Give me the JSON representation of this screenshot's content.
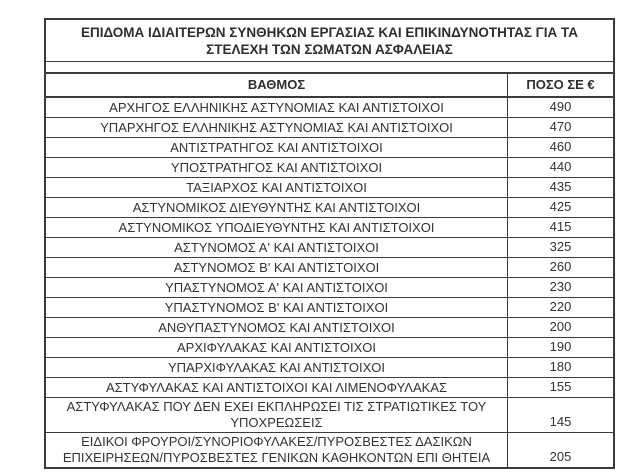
{
  "document": {
    "title_lines": [
      "ΕΠΙΔΟΜΑ ΙΔΙΑΙΤΕΡΩΝ ΣΥΝΘΗΚΩΝ ΕΡΓΑΣΙΑΣ ΚΑΙ ΕΠΙΚΙΝΔΥΝΟΤΗΤΑΣ ΓΙΑ ΤΑ",
      "ΣΤΕΛΕΧΗ ΤΩΝ ΣΩΜΑΤΩΝ ΑΣΦΑΛΕΙΑΣ"
    ],
    "columns": {
      "grade": "ΒΑΘΜΟΣ",
      "amount": "ΠΟΣΟ ΣΕ €"
    },
    "rows": [
      {
        "grade": "ΑΡΧΗΓΟΣ ΕΛΛΗΝΙΚΗΣ ΑΣΤΥΝΟΜΙΑΣ ΚΑΙ ΑΝΤΙΣΤΟΙΧΟΙ",
        "amount": "490"
      },
      {
        "grade": "ΥΠΑΡΧΗΓΟΣ ΕΛΛΗΝΙΚΗΣ ΑΣΤΥΝΟΜΙΑΣ ΚΑΙ ΑΝΤΙΣΤΟΙΧΟΙ",
        "amount": "470"
      },
      {
        "grade": "ΑΝΤΙΣΤΡΑΤΗΓΟΣ ΚΑΙ ΑΝΤΙΣΤΟΙΧΟΙ",
        "amount": "460"
      },
      {
        "grade": "ΥΠΟΣΤΡΑΤΗΓΟΣ ΚΑΙ ΑΝΤΙΣΤΟΙΧΟΙ",
        "amount": "440"
      },
      {
        "grade": "ΤΑΞΙΑΡΧΟΣ ΚΑΙ ΑΝΤΙΣΤΟΙΧΟΙ",
        "amount": "435"
      },
      {
        "grade": "ΑΣΤΥΝΟΜΙΚΟΣ ΔΙΕΥΘΥΝΤΗΣ ΚΑΙ ΑΝΤΙΣΤΟΙΧΟΙ",
        "amount": "425"
      },
      {
        "grade": "ΑΣΤΥΝΟΜΙΚΟΣ ΥΠΟΔΙΕΥΘΥΝΤΗΣ ΚΑΙ ΑΝΤΙΣΤΟΙΧΟΙ",
        "amount": "415"
      },
      {
        "grade": "ΑΣΤΥΝΟΜΟΣ Α' ΚΑΙ ΑΝΤΙΣΤΟΙΧΟΙ",
        "amount": "325"
      },
      {
        "grade": "ΑΣΤΥΝΟΜΟΣ Β' ΚΑΙ ΑΝΤΙΣΤΟΙΧΟΙ",
        "amount": "260"
      },
      {
        "grade": "ΥΠΑΣΤΥΝΟΜΟΣ Α' ΚΑΙ ΑΝΤΙΣΤΟΙΧΟΙ",
        "amount": "230"
      },
      {
        "grade": "ΥΠΑΣΤΥΝΟΜΟΣ Β' ΚΑΙ ΑΝΤΙΣΤΟΙΧΟΙ",
        "amount": "220"
      },
      {
        "grade": "ΑΝΘΥΠΑΣΤΥΝΟΜΟΣ ΚΑΙ ΑΝΤΙΣΤΟΙΧΟΙ",
        "amount": "200"
      },
      {
        "grade": "ΑΡΧΙΦΥΛΑΚΑΣ ΚΑΙ ΑΝΤΙΣΤΟΙΧΟΙ",
        "amount": "190"
      },
      {
        "grade": "ΥΠΑΡΧΙΦΥΛΑΚΑΣ ΚΑΙ ΑΝΤΙΣΤΟΙΧΟΙ",
        "amount": "180"
      },
      {
        "grade": "ΑΣΤΥΦΥΛΑΚΑΣ ΚΑΙ ΑΝΤΙΣΤΟΙΧΟΙ ΚΑΙ ΛΙΜΕΝΟΦΥΛΑΚΑΣ",
        "amount": "155"
      },
      {
        "grade": "ΑΣΤΥΦΥΛΑΚΑΣ ΠΟΥ ΔΕΝ ΕΧΕΙ ΕΚΠΛΗΡΩΣΕΙ ΤΙΣ ΣΤΡΑΤΙΩΤΙΚΕΣ ΤΟΥ ΥΠΟΧΡΕΩΣΕΙΣ",
        "amount": "145"
      },
      {
        "grade": "ΕΙΔΙΚΟΙ ΦΡΟΥΡΟΙ/ΣΥΝΟΡΙΟΦΥΛΑΚΕΣ/ΠΥΡΟΣΒΕΣΤΕΣ ΔΑΣΙΚΩΝ ΕΠΙΧΕΙΡΗΣΕΩΝ/ΠΥΡΟΣΒΕΣΤΕΣ ΓΕΝΙΚΩΝ ΚΑΘΗΚΟΝΤΩΝ ΕΠΙ ΘΗΤΕΙΑ",
        "amount": "205"
      }
    ],
    "colors": {
      "border": "#3b3b3b",
      "text": "#333333",
      "background": "#ffffff"
    }
  }
}
